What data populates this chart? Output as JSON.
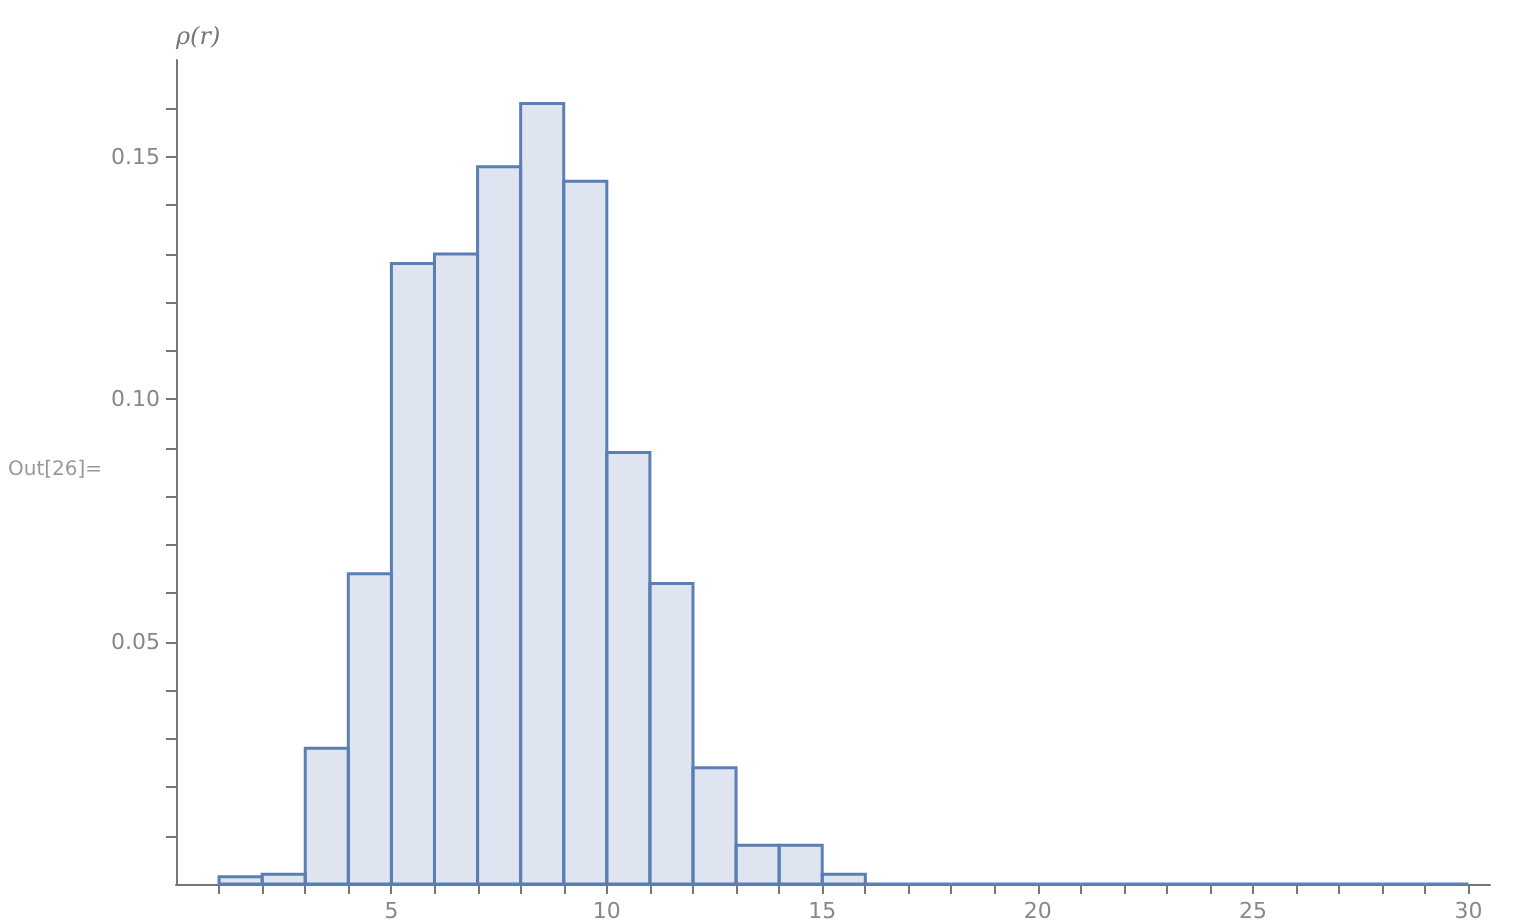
{
  "chart_data": {
    "type": "histogram",
    "ylabel": "ρ(r)",
    "annotations": [
      "Out[26]="
    ],
    "bins": [
      1,
      2,
      3,
      4,
      5,
      6,
      7,
      8,
      9,
      10,
      11,
      12,
      13,
      14,
      15,
      16,
      17,
      18,
      19,
      20,
      21,
      22,
      23,
      24,
      25,
      26,
      27,
      28,
      29,
      30
    ],
    "values": [
      0.0015,
      0.002,
      0.028,
      0.064,
      0.128,
      0.13,
      0.148,
      0.161,
      0.145,
      0.089,
      0.062,
      0.024,
      0.008,
      0.008,
      0.002,
      0,
      0,
      0,
      0,
      0,
      0,
      0,
      0,
      0,
      0,
      0,
      0,
      0,
      0
    ],
    "color": "#5b7fb5",
    "grid": false,
    "xlim": [
      0,
      30.5
    ],
    "xticks": [
      {
        "value": 1,
        "label": null
      },
      {
        "value": 2,
        "label": null
      },
      {
        "value": 3,
        "label": null
      },
      {
        "value": 4,
        "label": null
      },
      5,
      {
        "value": 6,
        "label": null
      },
      {
        "value": 7,
        "label": null
      },
      {
        "value": 8,
        "label": null
      },
      {
        "value": 9,
        "label": null
      },
      10,
      {
        "value": 11,
        "label": null
      },
      {
        "value": 12,
        "label": null
      },
      {
        "value": 13,
        "label": null
      },
      {
        "value": 14,
        "label": null
      },
      15,
      {
        "value": 16,
        "label": null
      },
      {
        "value": 17,
        "label": null
      },
      {
        "value": 18,
        "label": null
      },
      {
        "value": 19,
        "label": null
      },
      20,
      {
        "value": 21,
        "label": null
      },
      {
        "value": 22,
        "label": null
      },
      {
        "value": 23,
        "label": null
      },
      {
        "value": 24,
        "label": null
      },
      25,
      {
        "value": 26,
        "label": null
      },
      {
        "value": 27,
        "label": null
      },
      {
        "value": 28,
        "label": null
      },
      {
        "value": 29,
        "label": null
      },
      30
    ],
    "ylim": [
      0,
      0.17
    ],
    "yticks": [
      {
        "value": 0.01,
        "label": null
      },
      {
        "value": 0.02,
        "label": null
      },
      {
        "value": 0.03,
        "label": null
      },
      {
        "value": 0.04,
        "label": null
      },
      {
        "value": 0.05,
        "label": "0.05"
      },
      {
        "value": 0.06,
        "label": null
      },
      {
        "value": 0.07,
        "label": null
      },
      {
        "value": 0.08,
        "label": null
      },
      {
        "value": 0.09,
        "label": null
      },
      {
        "value": 0.1,
        "label": "0.10"
      },
      {
        "value": 0.11,
        "label": null
      },
      {
        "value": 0.12,
        "label": null
      },
      {
        "value": 0.13,
        "label": null
      },
      {
        "value": 0.14,
        "label": null
      },
      {
        "value": 0.15,
        "label": "0.15"
      },
      {
        "value": 0.16,
        "label": null
      }
    ]
  }
}
